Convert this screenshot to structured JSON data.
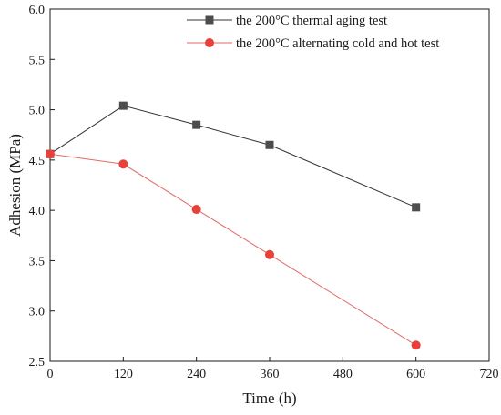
{
  "chart_data": {
    "type": "line",
    "xlabel": "Time (h)",
    "ylabel": "Adhesion (MPa)",
    "xlim": [
      0,
      720
    ],
    "ylim": [
      2.5,
      6.0
    ],
    "xticks": [
      "0",
      "120",
      "240",
      "360",
      "480",
      "600",
      "720"
    ],
    "yticks": [
      "2.5",
      "3.0",
      "3.5",
      "4.0",
      "4.5",
      "5.0",
      "5.5",
      "6.0"
    ],
    "grid": false,
    "legend_position": "top-right",
    "series": [
      {
        "name": "the 200°C thermal aging test",
        "marker": "square",
        "color": "#4d4d4d",
        "line_color": "#333333",
        "x": [
          0,
          120,
          240,
          360,
          600
        ],
        "y": [
          4.56,
          5.04,
          4.85,
          4.65,
          4.03
        ]
      },
      {
        "name": "the 200°C alternating cold and hot test",
        "marker": "circle",
        "color": "#e8413c",
        "line_color": "#e06a66",
        "x": [
          0,
          120,
          240,
          360,
          600
        ],
        "y": [
          4.56,
          4.46,
          4.01,
          3.56,
          2.66
        ]
      }
    ]
  }
}
